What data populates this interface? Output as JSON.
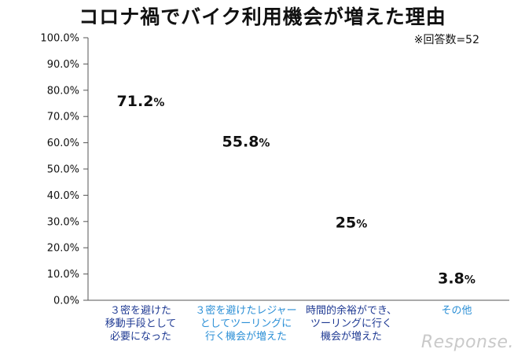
{
  "header": {
    "title": "コロナ禍でバイク利用機会が増えた理由",
    "note": "※回答数=52"
  },
  "watermark": "Response.",
  "chart_data": {
    "type": "bar",
    "title": "コロナ禍でバイク利用機会が増えた理由",
    "categories": [
      [
        "３密を避けた",
        "移動手段として",
        "必要になった"
      ],
      [
        "３密を避けたレジャー",
        "としてツーリングに",
        "行く機会が増えた"
      ],
      [
        "時間的余裕ができ、",
        "ツーリングに行く",
        "機会が増えた"
      ],
      [
        "その他"
      ]
    ],
    "values": [
      71.2,
      55.8,
      25,
      3.8
    ],
    "value_labels": [
      {
        "number": "71.2",
        "unit": "%"
      },
      {
        "number": "55.8",
        "unit": "%"
      },
      {
        "number": "25",
        "unit": "%"
      },
      {
        "number": "3.8",
        "unit": "%"
      }
    ],
    "bar_colors": [
      "#1f3a93",
      "#2b8fd6",
      "#1f3a93",
      "#2b8fd6"
    ],
    "ylim": [
      0,
      100
    ],
    "yticks": [
      "0.0%",
      "10.0%",
      "20.0%",
      "30.0%",
      "40.0%",
      "50.0%",
      "60.0%",
      "70.0%",
      "80.0%",
      "90.0%",
      "100.0%"
    ],
    "icon": "motorcycle-icon",
    "units_per_icon": 10
  }
}
